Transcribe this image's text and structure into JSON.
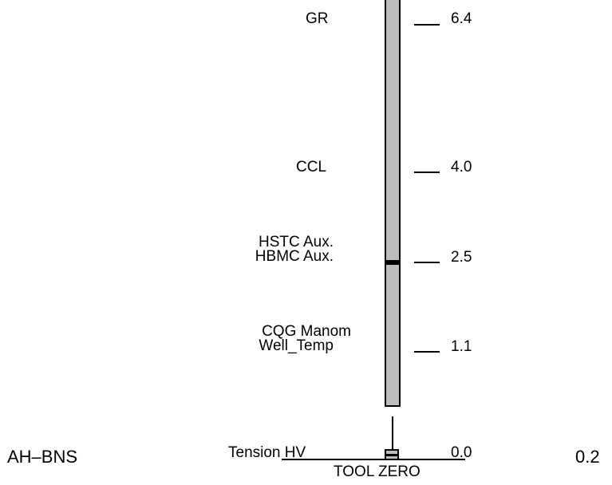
{
  "sensors": {
    "gr": "GR",
    "ccl": "CCL",
    "hstc_aux": "HSTC Aux.",
    "hbmc_aux": "HBMC Aux.",
    "cqg_manom": "CQG Manom",
    "well_temp": "Well_Temp",
    "tension_hv": "Tension HV"
  },
  "depths": {
    "d64": "6.4",
    "d40": "4.0",
    "d25": "2.5",
    "d11": "1.1",
    "d00": "0.0"
  },
  "tool_zero": "TOOL ZERO",
  "tool_name": "AH–BNS",
  "tool_length": "0.2",
  "colors": {
    "tool_fill": "#bdbdbd",
    "outline": "#000000"
  }
}
